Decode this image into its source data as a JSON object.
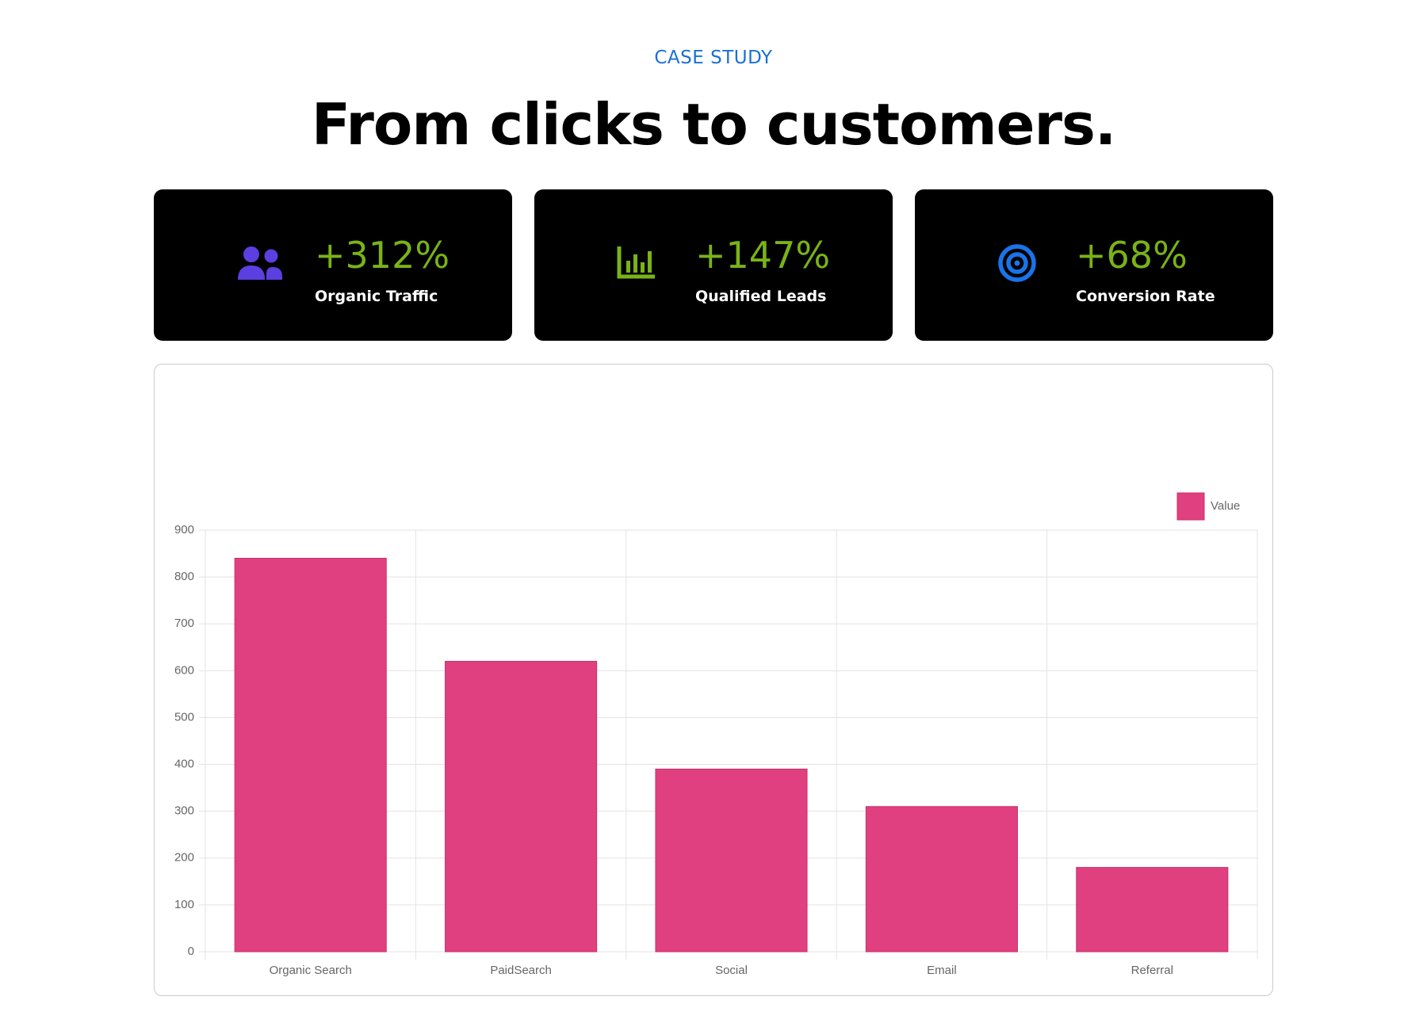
{
  "header": {
    "eyebrow": "CASE STUDY",
    "title": "From clicks to customers."
  },
  "stats": [
    {
      "value": "+312%",
      "label": "Organic Traffic"
    },
    {
      "value": "+147%",
      "label": "Qualified Leads"
    },
    {
      "value": "+68%",
      "label": "Conversion Rate"
    }
  ],
  "chart_data": {
    "type": "bar",
    "categories": [
      "Organic Search",
      "PaidSearch",
      "Social",
      "Email",
      "Referral"
    ],
    "series": [
      {
        "name": "Value",
        "color": "#e0407f",
        "values": [
          840,
          620,
          390,
          310,
          180
        ]
      }
    ],
    "ylim": [
      0,
      900
    ],
    "yticks": [
      0,
      100,
      200,
      300,
      400,
      500,
      600,
      700,
      800,
      900
    ],
    "grid": true,
    "legend": "top-right"
  }
}
